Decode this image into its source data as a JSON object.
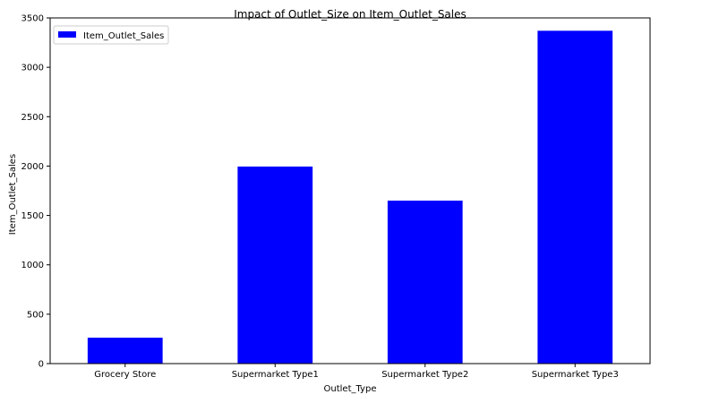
{
  "chart_data": {
    "type": "bar",
    "title": "Impact of Outlet_Size on Item_Outlet_Sales",
    "xlabel": "Outlet_Type",
    "ylabel": "Item_Outlet_Sales",
    "categories": [
      "Grocery Store",
      "Supermarket Type1",
      "Supermarket Type2",
      "Supermarket Type3"
    ],
    "series": [
      {
        "name": "Item_Outlet_Sales",
        "values": [
          262,
          1995,
          1650,
          3370
        ],
        "color": "#0000ff"
      }
    ],
    "ylim": [
      0,
      3500
    ],
    "yticks": [
      0,
      500,
      1000,
      1500,
      2000,
      2500,
      3000,
      3500
    ],
    "grid": false,
    "legend_position": "top-left"
  }
}
